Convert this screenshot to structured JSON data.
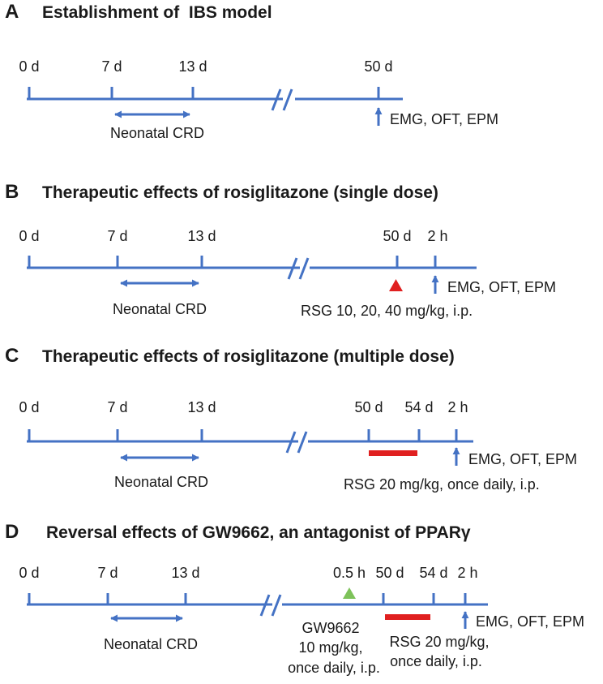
{
  "colors": {
    "timeline": "#4472C4",
    "rsg_marker": "#E02020",
    "gw_marker": "#7DC25A",
    "text": "#1a1a1a"
  },
  "panels": [
    {
      "letter": "A",
      "title": "Establishment of  IBS model",
      "ticks": [
        "0 d",
        "7 d",
        "13 d",
        "50 d"
      ],
      "crd_label": "Neonatal CRD",
      "endpoint_label": "EMG, OFT, EPM"
    },
    {
      "letter": "B",
      "title": "Therapeutic effects of rosiglitazone (single dose)",
      "ticks": [
        "0 d",
        "7 d",
        "13 d",
        "50 d",
        "2 h"
      ],
      "crd_label": "Neonatal CRD",
      "endpoint_label": "EMG, OFT, EPM",
      "treatment_label": "RSG 10, 20, 40 mg/kg, i.p.",
      "marker_icon": "red-triangle-icon"
    },
    {
      "letter": "C",
      "title": "Therapeutic effects of rosiglitazone (multiple dose)",
      "ticks": [
        "0 d",
        "7 d",
        "13 d",
        "50 d",
        "54 d",
        "2 h"
      ],
      "crd_label": "Neonatal CRD",
      "endpoint_label": "EMG, OFT, EPM",
      "treatment_label": "RSG 20 mg/kg, once daily, i.p."
    },
    {
      "letter": "D",
      "title": "Reversal effects of GW9662, an antagonist of PPARγ",
      "ticks": [
        "0 d",
        "7 d",
        "13 d",
        "0.5 h",
        "50 d",
        "54 d",
        "2 h"
      ],
      "crd_label": "Neonatal CRD",
      "endpoint_label": "EMG, OFT, EPM",
      "gw_label": [
        "GW9662",
        "10 mg/kg,",
        "once daily, i.p."
      ],
      "rsg_label": [
        "RSG 20 mg/kg,",
        "once daily, i.p."
      ],
      "marker_icon": "green-triangle-icon"
    }
  ]
}
